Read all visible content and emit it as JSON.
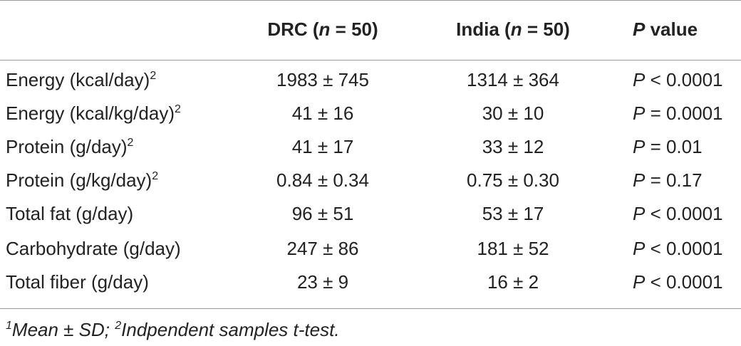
{
  "table": {
    "headers": {
      "col1_prefix": "DRC (",
      "col1_n": "n",
      "col1_suffix": " = 50)",
      "col2_prefix": "India (",
      "col2_n": "n",
      "col2_suffix": " = 50)",
      "col3_p": "P",
      "col3_suffix": " value"
    },
    "rows": [
      {
        "label": "Energy (kcal/day)",
        "sup": "2",
        "drc": "1983 ± 745",
        "india": "1314 ± 364",
        "p_letter": "P",
        "p_rest": " < 0.0001"
      },
      {
        "label": "Energy (kcal/kg/day)",
        "sup": "2",
        "drc": "41 ± 16",
        "india": "30 ± 10",
        "p_letter": "P",
        "p_rest": " = 0.0001"
      },
      {
        "label": "Protein (g/day)",
        "sup": "2",
        "drc": "41 ± 17",
        "india": "33 ± 12",
        "p_letter": "P",
        "p_rest": " = 0.01"
      },
      {
        "label": "Protein (g/kg/day)",
        "sup": "2",
        "drc": "0.84 ± 0.34",
        "india": "0.75 ± 0.30",
        "p_letter": "P",
        "p_rest": " = 0.17"
      },
      {
        "label": "Total fat (g/day)",
        "sup": "",
        "drc": "96 ± 51",
        "india": "53 ± 17",
        "p_letter": "P",
        "p_rest": " < 0.0001"
      },
      {
        "label": "Carbohydrate (g/day)",
        "sup": "",
        "drc": "247 ± 86",
        "india": "181 ± 52",
        "p_letter": "P",
        "p_rest": " < 0.0001"
      },
      {
        "label": "Total fiber (g/day)",
        "sup": "",
        "drc": "23 ± 9",
        "india": "16 ± 2",
        "p_letter": "P",
        "p_rest": " < 0.0001"
      }
    ]
  },
  "footnote": {
    "sup1": "1",
    "text1": "Mean ± SD; ",
    "sup2": "2",
    "text2": "Indpendent samples t-test."
  }
}
